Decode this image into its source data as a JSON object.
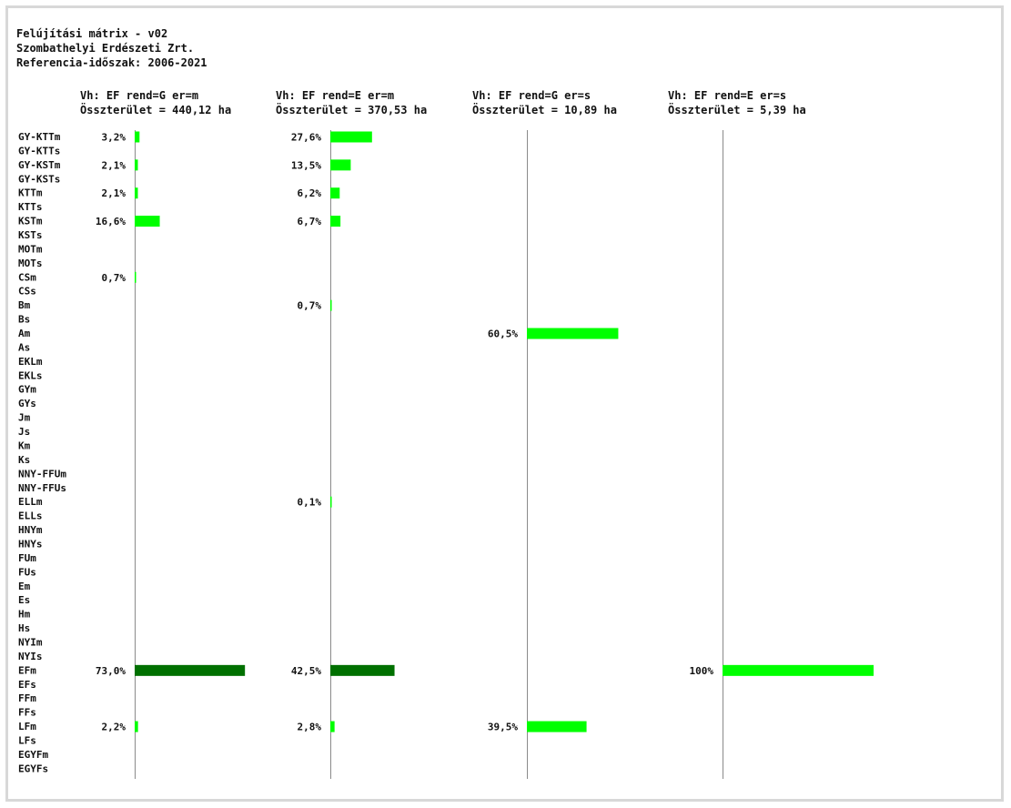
{
  "header": {
    "title": "Felújítási mátrix - v02",
    "company": "Szombathelyi Erdészeti Zrt.",
    "period": "Referencia-időszak: 2006-2021"
  },
  "colors": {
    "bar_light": "#00ff00",
    "bar_dark": "#007000",
    "axis": "#8a8a8a",
    "text": "#111111"
  },
  "chart_data": {
    "type": "bar",
    "orientation": "horizontal",
    "categories": [
      "GY-KTTm",
      "GY-KTTs",
      "GY-KSTm",
      "GY-KSTs",
      "KTTm",
      "KTTs",
      "KSTm",
      "KSTs",
      "MOTm",
      "MOTs",
      "CSm",
      "CSs",
      "Bm",
      "Bs",
      "Am",
      "As",
      "EKLm",
      "EKLs",
      "GYm",
      "GYs",
      "Jm",
      "Js",
      "Km",
      "Ks",
      "NNY-FFUm",
      "NNY-FFUs",
      "ELLm",
      "ELLs",
      "HNYm",
      "HNYs",
      "FUm",
      "FUs",
      "Em",
      "Es",
      "Hm",
      "Hs",
      "NYIm",
      "NYIs",
      "EFm",
      "EFs",
      "FFm",
      "FFs",
      "LFm",
      "LFs",
      "EGYFm",
      "EGYFs"
    ],
    "xlim": [
      0,
      100
    ],
    "unit": "%",
    "panels": [
      {
        "title": "Vh: EF rend=G er=m",
        "subtitle": "Összterület = 440,12 ha",
        "highlight": "EFm",
        "bars": [
          {
            "category": "GY-KTTm",
            "value": 3.2,
            "label": "3,2%"
          },
          {
            "category": "GY-KSTm",
            "value": 2.1,
            "label": "2,1%"
          },
          {
            "category": "KTTm",
            "value": 2.1,
            "label": "2,1%"
          },
          {
            "category": "KSTm",
            "value": 16.6,
            "label": "16,6%"
          },
          {
            "category": "CSm",
            "value": 0.7,
            "label": "0,7%"
          },
          {
            "category": "EFm",
            "value": 73.0,
            "label": "73,0%"
          },
          {
            "category": "LFm",
            "value": 2.2,
            "label": "2,2%"
          }
        ]
      },
      {
        "title": "Vh: EF rend=E er=m",
        "subtitle": "Összterület = 370,53 ha",
        "highlight": "EFm",
        "bars": [
          {
            "category": "GY-KTTm",
            "value": 27.6,
            "label": "27,6%"
          },
          {
            "category": "GY-KSTm",
            "value": 13.5,
            "label": "13,5%"
          },
          {
            "category": "KTTm",
            "value": 6.2,
            "label": "6,2%"
          },
          {
            "category": "KSTm",
            "value": 6.7,
            "label": "6,7%"
          },
          {
            "category": "Bm",
            "value": 0.7,
            "label": "0,7%"
          },
          {
            "category": "ELLm",
            "value": 0.1,
            "label": "0,1%"
          },
          {
            "category": "EFm",
            "value": 42.5,
            "label": "42,5%"
          },
          {
            "category": "LFm",
            "value": 2.8,
            "label": "2,8%"
          }
        ]
      },
      {
        "title": "Vh: EF rend=G er=s",
        "subtitle": "Összterület = 10,89 ha",
        "highlight": "EFs",
        "bars": [
          {
            "category": "Am",
            "value": 60.5,
            "label": "60,5%"
          },
          {
            "category": "LFm",
            "value": 39.5,
            "label": "39,5%"
          }
        ]
      },
      {
        "title": "Vh: EF rend=E er=s",
        "subtitle": "Összterület = 5,39 ha",
        "highlight": "EFs",
        "bars": [
          {
            "category": "EFm",
            "value": 100,
            "label": "100%"
          }
        ]
      }
    ]
  }
}
